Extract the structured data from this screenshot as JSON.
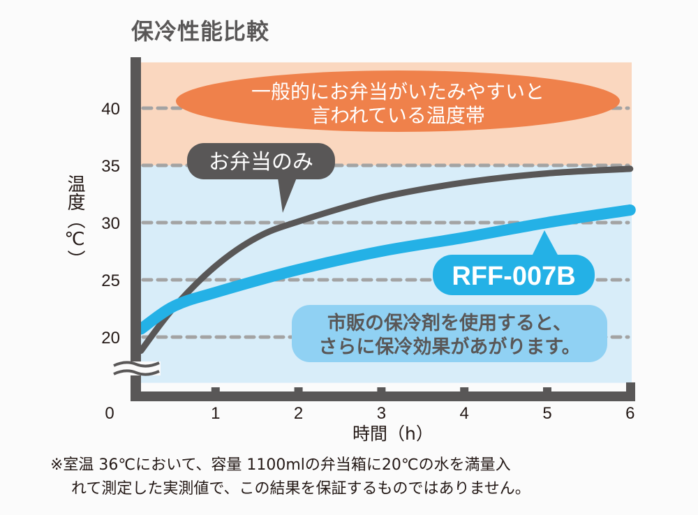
{
  "chart_data": {
    "type": "line",
    "title": "保冷性能比較",
    "xlabel": "時間（h）",
    "ylabel": "温度（℃）",
    "xlim": [
      0,
      6
    ],
    "ylim": [
      20,
      40
    ],
    "x_ticks": [
      "0",
      "1",
      "2",
      "3",
      "4",
      "5",
      "6"
    ],
    "y_ticks": [
      "20",
      "25",
      "30",
      "35",
      "40"
    ],
    "y_axis_break": true,
    "grid": "dashed horizontal",
    "bands": [
      {
        "from": 35,
        "to": 44,
        "color": "#fad7bf",
        "label": "一般的にお弁当がいたみやすいと言われている温度帯",
        "label_color": "#ef814b"
      },
      {
        "from": 16,
        "to": 35,
        "color": "#d8edf9"
      }
    ],
    "series": [
      {
        "name": "お弁当のみ",
        "color": "#595757",
        "x": [
          0.1,
          0.5,
          1,
          1.5,
          2,
          3,
          4,
          5,
          6
        ],
        "y": [
          18.8,
          22.6,
          26.2,
          28.7,
          30.1,
          32.2,
          33.5,
          34.3,
          34.7
        ]
      },
      {
        "name": "RFF-007B",
        "color": "#24b1e6",
        "x": [
          0.1,
          0.5,
          1,
          2,
          3,
          4,
          5,
          6
        ],
        "y": [
          20.7,
          22.7,
          23.9,
          25.9,
          27.5,
          28.7,
          30.0,
          31.1
        ]
      }
    ],
    "annotations": [
      "市販の保冷剤を使用すると、",
      "さらに保冷効果があがります。"
    ],
    "band_label_lines": [
      "一般的にお弁当がいたみやすいと",
      "言われている温度帯"
    ]
  },
  "footnote": [
    "※室温 36℃において、容量 1100mlの弁当箱に20℃の水を満量入",
    "れて測定した実測値で、この結果を保証するものではありません。"
  ]
}
